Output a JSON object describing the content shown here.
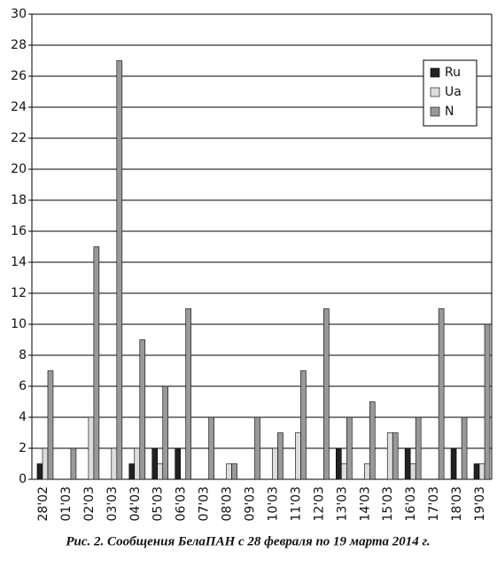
{
  "chart_data": {
    "type": "bar",
    "caption": "Рис. 2. Сообщения БелаПАН с 28 февраля по 19 марта 2014 г.",
    "categories": [
      "28'02",
      "01'03",
      "02'03",
      "03'03",
      "04'03",
      "05'03",
      "06'03",
      "07'03",
      "08'03",
      "09'03",
      "10'03",
      "11'03",
      "12'03",
      "13'03",
      "14'03",
      "15'03",
      "16'03",
      "17'03",
      "18'03",
      "19'03"
    ],
    "series": [
      {
        "name": "Ru",
        "color": "#222222",
        "values": [
          1,
          0,
          0,
          0,
          1,
          2,
          2,
          0,
          0,
          0,
          0,
          0,
          0,
          2,
          0,
          0,
          2,
          0,
          2,
          1
        ]
      },
      {
        "name": "Ua",
        "color": "#dddddd",
        "values": [
          2,
          0,
          4,
          2,
          2,
          1,
          0,
          0,
          1,
          0,
          2,
          3,
          0,
          1,
          1,
          3,
          1,
          0,
          0,
          1
        ]
      },
      {
        "name": "N",
        "color": "#999999",
        "values": [
          7,
          2,
          15,
          27,
          9,
          6,
          11,
          4,
          1,
          4,
          3,
          7,
          11,
          4,
          5,
          3,
          4,
          11,
          4,
          10
        ]
      }
    ],
    "ylim": [
      0,
      30
    ],
    "yticks": [
      0,
      2,
      4,
      6,
      8,
      10,
      12,
      14,
      16,
      18,
      20,
      22,
      24,
      26,
      28,
      30
    ],
    "grid": true,
    "legend": "top-right"
  }
}
